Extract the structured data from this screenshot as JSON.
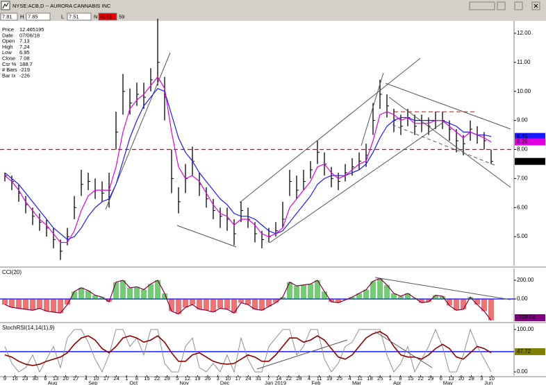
{
  "window": {
    "title": "NYSE:ACB,D -- AURORA CANNABIS INC",
    "quote": [
      "7.81",
      "H",
      "7.85",
      "L",
      "7.51",
      "N",
      "-0.41",
      "59"
    ]
  },
  "info": {
    "labels": [
      "Price",
      "Date",
      "Open",
      "High",
      "Low",
      "Close",
      "Csr %",
      "# Bars",
      "Bar Ix"
    ],
    "values": [
      "12.465195",
      "07/06/18",
      "7.13",
      "7.24",
      "6.95",
      "7.08",
      "188.7",
      "-219",
      "-226"
    ]
  },
  "x_axis": {
    "categories": [
      "9",
      "16",
      "23",
      "30",
      "6",
      "13",
      "20",
      "27",
      "4",
      "10",
      "17",
      "24",
      "1",
      "8",
      "15",
      "22",
      "29",
      "5",
      "12",
      "19",
      "26",
      "3",
      "10",
      "17",
      "24",
      "31",
      "7",
      "14",
      "22",
      "28",
      "4",
      "11",
      "19",
      "25",
      "4",
      "11",
      "18",
      "25",
      "1",
      "8",
      "15",
      "22",
      "29",
      "6",
      "13",
      "20",
      "28",
      "3",
      "10"
    ],
    "months": [
      null,
      null,
      null,
      null,
      "Aug",
      null,
      null,
      null,
      "Sep",
      null,
      null,
      null,
      "Oct",
      null,
      null,
      null,
      null,
      "Nov",
      null,
      null,
      null,
      "Dec",
      null,
      null,
      null,
      null,
      "Jan 2019",
      null,
      null,
      null,
      "Feb",
      null,
      null,
      null,
      "Mar",
      null,
      null,
      null,
      "Apr",
      null,
      null,
      null,
      null,
      "May",
      null,
      null,
      null,
      "Jun",
      null
    ]
  },
  "chart_data": [
    {
      "type": "ohlc",
      "color": "#000000",
      "high": [
        7.2,
        7.1,
        6.8,
        6.4,
        6.0,
        5.8,
        5.6,
        5.3,
        4.9,
        5.3,
        6.4,
        7.3,
        7.2,
        7.0,
        6.9,
        7.2,
        9.3,
        10.6,
        10.1,
        10.3,
        10.3,
        10.8,
        12.5,
        10.5,
        8.0,
        6.7,
        7.5,
        8.1,
        7.2,
        6.7,
        6.3,
        6.0,
        6.0,
        5.6,
        6.2,
        6.0,
        5.5,
        5.2,
        5.3,
        5.5,
        6.2,
        7.3,
        7.1,
        7.3,
        7.6,
        8.3,
        7.9,
        7.4,
        7.2,
        7.5,
        7.7,
        7.9,
        8.2,
        9.6,
        10.4,
        9.9,
        9.4,
        9.2,
        9.4,
        9.2,
        9.2,
        9.1,
        9.3,
        9.3,
        9.0,
        8.7,
        8.5,
        9.0,
        8.8,
        8.6,
        8.0
      ],
      "low": [
        6.9,
        6.6,
        6.2,
        5.8,
        5.4,
        5.2,
        5.0,
        4.6,
        4.2,
        4.7,
        5.6,
        6.4,
        6.6,
        6.3,
        6.2,
        6.0,
        8.0,
        9.2,
        9.2,
        9.5,
        9.4,
        10.0,
        10.2,
        9.0,
        6.5,
        5.8,
        6.5,
        7.1,
        6.4,
        6.0,
        5.6,
        5.3,
        5.2,
        4.7,
        5.5,
        5.3,
        4.8,
        4.6,
        4.8,
        5.0,
        5.3,
        6.4,
        6.3,
        6.6,
        7.0,
        7.5,
        7.1,
        6.7,
        6.6,
        6.9,
        7.1,
        7.3,
        7.4,
        8.5,
        9.4,
        9.1,
        8.6,
        8.5,
        8.8,
        8.5,
        8.6,
        8.5,
        8.7,
        8.7,
        8.3,
        7.9,
        7.8,
        8.3,
        8.2,
        8.0,
        7.5
      ],
      "close": [
        7.1,
        6.9,
        6.5,
        6.1,
        5.7,
        5.5,
        5.3,
        4.9,
        4.5,
        5.0,
        6.0,
        6.8,
        6.9,
        6.6,
        6.5,
        6.6,
        8.6,
        10.0,
        9.6,
        9.9,
        9.8,
        10.4,
        11.0,
        9.8,
        7.0,
        6.2,
        7.0,
        7.6,
        6.8,
        6.3,
        5.9,
        5.7,
        5.6,
        5.1,
        5.9,
        5.6,
        5.1,
        4.9,
        5.0,
        5.2,
        5.6,
        6.9,
        6.6,
        6.9,
        7.3,
        7.9,
        7.5,
        7.0,
        6.9,
        7.2,
        7.4,
        7.6,
        7.8,
        9.0,
        9.9,
        9.5,
        9.0,
        8.8,
        9.1,
        8.8,
        8.9,
        8.8,
        9.0,
        9.0,
        8.7,
        8.3,
        8.2,
        8.7,
        8.5,
        8.3,
        7.59
      ],
      "overlays": [
        {
          "color": "#1a1aff",
          "values": [
            7.2,
            7.0,
            6.8,
            6.5,
            6.2,
            5.9,
            5.6,
            5.3,
            5.1,
            4.9,
            5.0,
            5.3,
            5.7,
            6.0,
            6.2,
            6.3,
            6.8,
            7.6,
            8.4,
            9.0,
            9.5,
            9.8,
            10.1,
            10.0,
            9.2,
            8.4,
            7.9,
            7.6,
            7.2,
            6.9,
            6.6,
            6.3,
            6.1,
            5.8,
            5.7,
            5.7,
            5.6,
            5.4,
            5.2,
            5.1,
            5.2,
            5.5,
            5.8,
            6.1,
            6.4,
            6.8,
            7.0,
            7.1,
            7.1,
            7.1,
            7.2,
            7.3,
            7.5,
            7.9,
            8.4,
            8.8,
            9.0,
            9.1,
            9.1,
            9.0,
            9.0,
            9.0,
            9.0,
            9.0,
            8.9,
            8.8,
            8.6,
            8.6,
            8.5,
            8.5,
            8.45
          ]
        },
        {
          "color": "#e000e0",
          "values": [
            7.1,
            6.9,
            6.6,
            6.2,
            5.9,
            5.6,
            5.4,
            5.1,
            4.8,
            4.8,
            5.2,
            5.9,
            6.4,
            6.6,
            6.6,
            6.6,
            7.4,
            8.6,
            9.4,
            9.7,
            9.9,
            10.2,
            10.5,
            10.1,
            8.6,
            7.4,
            7.0,
            7.1,
            6.9,
            6.5,
            6.1,
            5.8,
            5.7,
            5.4,
            5.6,
            5.6,
            5.4,
            5.1,
            5.0,
            5.1,
            5.3,
            6.0,
            6.3,
            6.6,
            6.9,
            7.4,
            7.5,
            7.2,
            7.0,
            7.1,
            7.3,
            7.5,
            7.6,
            8.3,
            9.2,
            9.3,
            9.2,
            9.0,
            9.1,
            8.9,
            8.9,
            8.9,
            9.0,
            9.0,
            8.8,
            8.6,
            8.4,
            8.6,
            8.5,
            8.4,
            8.26
          ]
        }
      ],
      "reference_lines": [
        {
          "value": 8,
          "color": "#e00000"
        },
        {
          "value": 9.3,
          "color": "#e00000"
        }
      ],
      "ylim": [
        4.0,
        12.43
      ],
      "yticks": [
        {
          "value": 5,
          "label": "5.00"
        },
        {
          "value": 6,
          "label": "6.00"
        },
        {
          "value": 7,
          "label": "7.00"
        },
        {
          "value": 8,
          "label": "8.00"
        },
        {
          "value": 9,
          "label": "9.00"
        },
        {
          "value": 10,
          "label": "10.00"
        },
        {
          "value": 11,
          "label": "11.00"
        },
        {
          "value": 12,
          "label": "12.00"
        }
      ]
    },
    {
      "type": "histogram",
      "title": "CCI(20)",
      "pos_color": "#00a000",
      "neg_color": "#e00000",
      "line_color": "#800040",
      "last_color": "#800080",
      "values": [
        -60,
        -90,
        -100,
        -110,
        -120,
        -100,
        -130,
        -140,
        -150,
        -60,
        80,
        120,
        90,
        40,
        20,
        -30,
        180,
        200,
        120,
        130,
        100,
        160,
        200,
        60,
        -130,
        -160,
        -90,
        -60,
        -110,
        -120,
        -140,
        -100,
        -110,
        -150,
        -40,
        -60,
        -110,
        -120,
        -80,
        -40,
        20,
        180,
        140,
        150,
        160,
        200,
        80,
        -30,
        -40,
        -10,
        20,
        60,
        100,
        190,
        220,
        150,
        60,
        30,
        60,
        10,
        -40,
        -30,
        40,
        30,
        -70,
        -120,
        -110,
        20,
        -60,
        -130,
        -228.04
      ],
      "reference_lines": [
        {
          "value": 0,
          "color": "#0000ff"
        }
      ],
      "ylim": [
        -237,
        326
      ],
      "yticks": [
        {
          "value": 200,
          "label": "200.00"
        },
        {
          "value": 0,
          "label": "0.00"
        }
      ]
    },
    {
      "type": "line",
      "title": "StochRSI(14,14(1),9)",
      "series": [
        {
          "color": "#909090",
          "values": [
            60,
            20,
            0,
            10,
            40,
            0,
            30,
            60,
            10,
            80,
            100,
            100,
            70,
            30,
            0,
            40,
            100,
            100,
            60,
            80,
            40,
            100,
            100,
            20,
            0,
            0,
            60,
            80,
            10,
            0,
            20,
            0,
            40,
            0,
            80,
            30,
            0,
            0,
            60,
            80,
            100,
            100,
            40,
            60,
            100,
            100,
            30,
            0,
            20,
            60,
            70,
            100,
            100,
            100,
            100,
            40,
            0,
            20,
            60,
            0,
            30,
            60,
            100,
            60,
            0,
            0,
            40,
            100,
            60,
            30,
            0
          ]
        },
        {
          "color": "#8b0000",
          "values": [
            40,
            35,
            25,
            18,
            15,
            18,
            25,
            30,
            35,
            45,
            65,
            80,
            85,
            75,
            55,
            45,
            60,
            80,
            85,
            80,
            70,
            75,
            85,
            70,
            45,
            25,
            25,
            40,
            45,
            35,
            25,
            20,
            18,
            20,
            30,
            40,
            35,
            25,
            25,
            40,
            60,
            80,
            80,
            70,
            75,
            85,
            75,
            55,
            35,
            30,
            40,
            60,
            80,
            90,
            95,
            85,
            60,
            40,
            35,
            35,
            30,
            40,
            55,
            65,
            55,
            35,
            30,
            45,
            60,
            55,
            45
          ]
        }
      ],
      "reference_lines": [
        {
          "value": 47.72,
          "color": "#0000ff",
          "label_color": "#808000"
        }
      ],
      "ylim": [
        -8,
        113
      ],
      "yticks": [
        {
          "value": 100,
          "label": "100.00"
        },
        {
          "value": 0,
          "label": "0.00"
        }
      ]
    }
  ]
}
